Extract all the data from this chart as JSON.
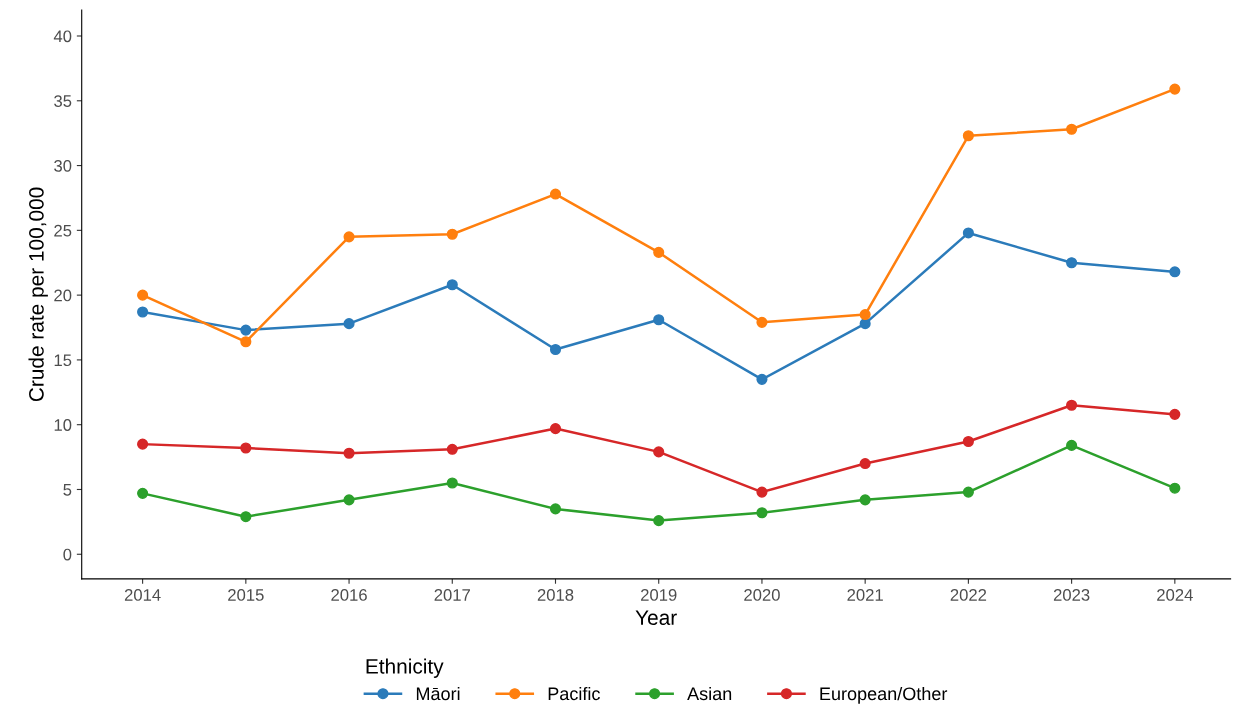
{
  "chart_data": {
    "type": "line",
    "xlabel": "Year",
    "ylabel": "Crude rate per 100,000",
    "legend_title": "Ethnicity",
    "x": [
      2014,
      2015,
      2016,
      2017,
      2018,
      2019,
      2020,
      2021,
      2022,
      2023,
      2024
    ],
    "series": [
      {
        "name": "Māori",
        "color": "#2b7bba",
        "values": [
          18.7,
          17.3,
          17.8,
          20.8,
          15.8,
          18.1,
          13.5,
          17.8,
          24.8,
          22.5,
          21.8
        ]
      },
      {
        "name": "Pacific",
        "color": "#ff7f0e",
        "values": [
          20.0,
          16.4,
          24.5,
          24.7,
          27.8,
          23.3,
          17.9,
          18.5,
          32.3,
          32.8,
          35.9
        ]
      },
      {
        "name": "Asian",
        "color": "#2ca02c",
        "values": [
          4.7,
          2.9,
          4.2,
          5.5,
          3.5,
          2.6,
          3.2,
          4.2,
          4.8,
          8.4,
          5.1
        ]
      },
      {
        "name": "European/Other",
        "color": "#d62728",
        "values": [
          8.5,
          8.2,
          7.8,
          8.1,
          9.7,
          7.9,
          4.8,
          7.0,
          8.7,
          11.5,
          10.8
        ]
      }
    ],
    "xlim": [
      2013.41,
      2024.54
    ],
    "xticks": [
      2014,
      2015,
      2016,
      2017,
      2018,
      2019,
      2020,
      2021,
      2022,
      2023,
      2024
    ],
    "ylim": [
      -1.9,
      42
    ],
    "yticks": [
      0,
      5,
      10,
      15,
      20,
      25,
      30,
      35,
      40
    ],
    "grid": false,
    "legend": "bottom",
    "marker": "circle",
    "line_style": "solid"
  }
}
